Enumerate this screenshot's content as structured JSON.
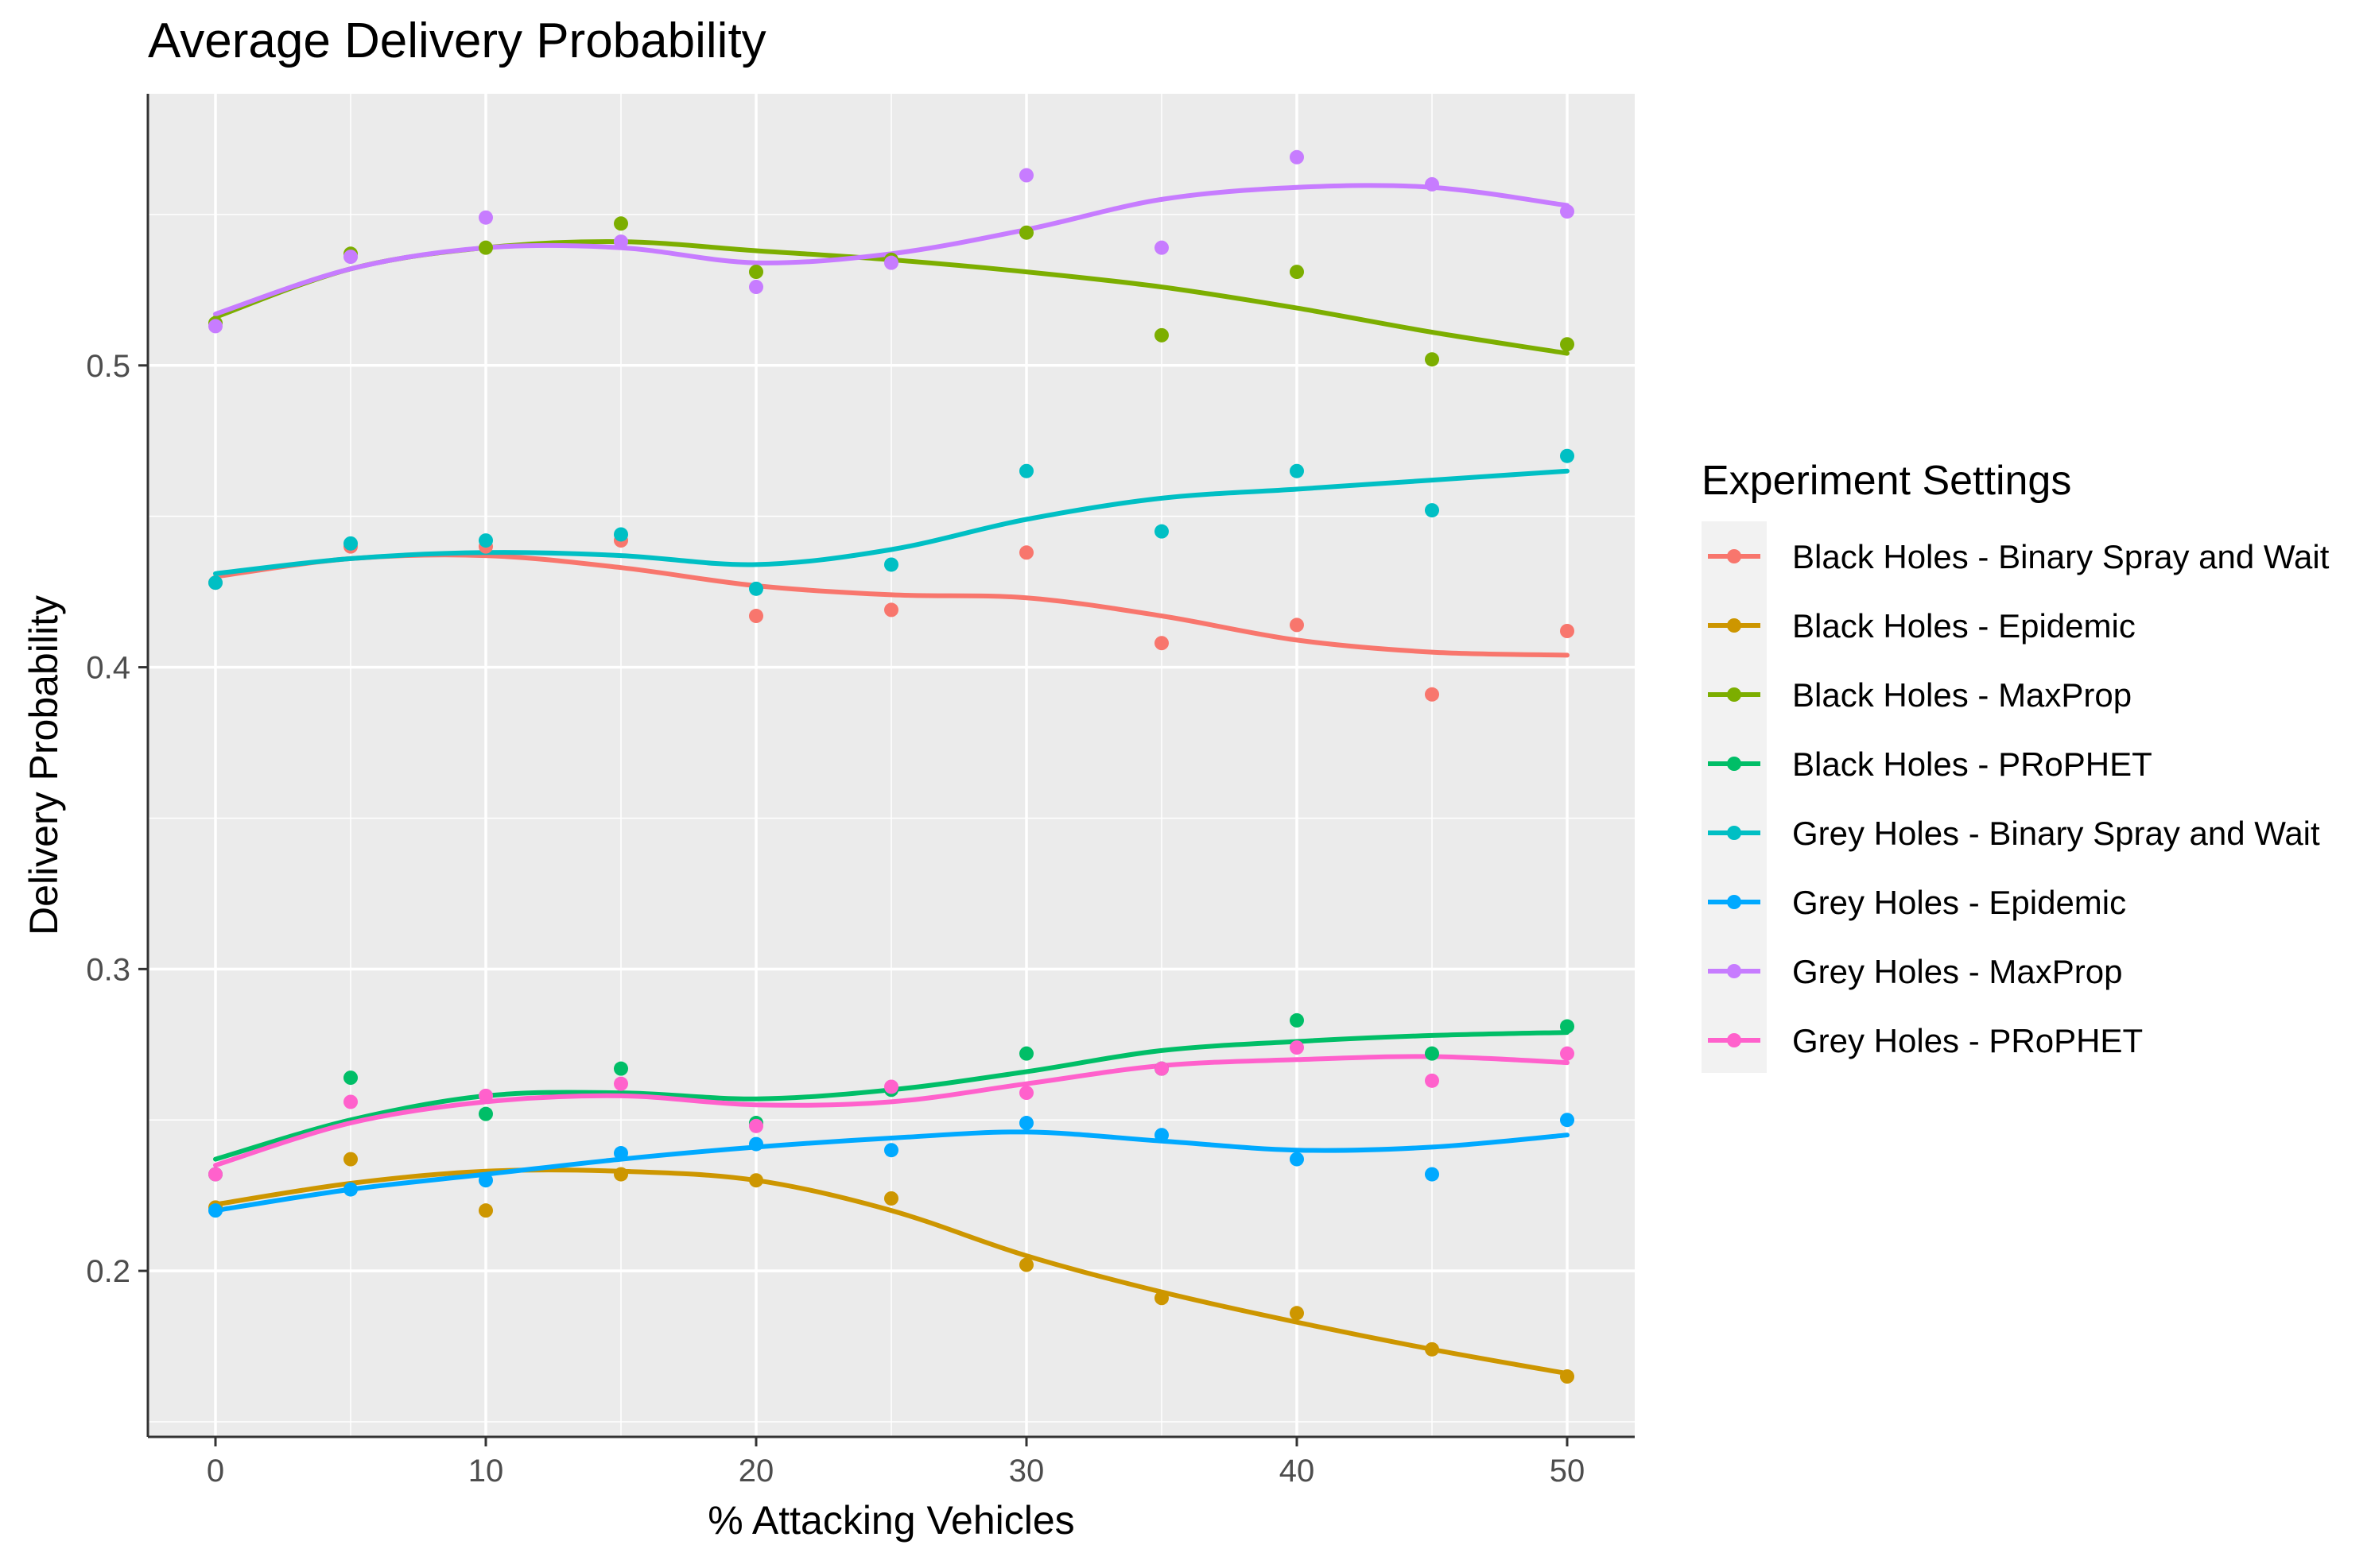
{
  "chart_data": {
    "type": "scatter",
    "title": "Average Delivery Probability",
    "xlabel": "% Attacking Vehicles",
    "ylabel": "Delivery Probability",
    "xlim": [
      -2.5,
      52.5
    ],
    "ylim": [
      0.145,
      0.59
    ],
    "xticks": [
      0,
      10,
      20,
      30,
      40,
      50
    ],
    "xtick_labels": [
      "0",
      "10",
      "20",
      "30",
      "40",
      "50"
    ],
    "yticks": [
      0.2,
      0.3,
      0.4,
      0.5
    ],
    "ytick_labels": [
      "0.2",
      "0.3",
      "0.4",
      "0.5"
    ],
    "grid": true,
    "legend_title": "Experiment Settings",
    "legend_position": "right",
    "x": [
      0,
      5,
      10,
      15,
      20,
      25,
      30,
      35,
      40,
      45,
      50
    ],
    "series": [
      {
        "name": "Black Holes - Binary Spray and Wait",
        "color": "#F8766D",
        "points": [
          0.428,
          0.44,
          0.44,
          0.442,
          0.417,
          0.419,
          0.438,
          0.408,
          0.414,
          0.391,
          0.412
        ],
        "smooth": [
          0.43,
          0.436,
          0.437,
          0.433,
          0.427,
          0.424,
          0.423,
          0.417,
          0.409,
          0.405,
          0.404
        ]
      },
      {
        "name": "Black Holes - Epidemic",
        "color": "#CD9600",
        "points": [
          0.221,
          0.237,
          0.22,
          0.232,
          0.23,
          0.224,
          0.202,
          0.191,
          0.186,
          0.174,
          0.165
        ],
        "smooth": [
          0.222,
          0.229,
          0.233,
          0.233,
          0.23,
          0.22,
          0.205,
          0.193,
          0.183,
          0.174,
          0.166
        ]
      },
      {
        "name": "Black Holes - MaxProp",
        "color": "#7CAE00",
        "points": [
          0.514,
          0.537,
          0.539,
          0.547,
          0.531,
          0.535,
          0.544,
          0.51,
          0.531,
          0.502,
          0.507
        ],
        "smooth": [
          0.516,
          0.532,
          0.539,
          0.541,
          0.538,
          0.535,
          0.531,
          0.526,
          0.519,
          0.511,
          0.504
        ]
      },
      {
        "name": "Black Holes - PRoPHET",
        "color": "#00BE67",
        "points": [
          0.232,
          0.264,
          0.252,
          0.267,
          0.249,
          0.26,
          0.272,
          0.267,
          0.283,
          0.272,
          0.281
        ],
        "smooth": [
          0.237,
          0.25,
          0.258,
          0.259,
          0.257,
          0.26,
          0.266,
          0.273,
          0.276,
          0.278,
          0.279
        ]
      },
      {
        "name": "Grey Holes - Binary Spray and Wait",
        "color": "#00BFC4",
        "points": [
          0.428,
          0.441,
          0.442,
          0.444,
          0.426,
          0.434,
          0.465,
          0.445,
          0.465,
          0.452,
          0.47
        ],
        "smooth": [
          0.431,
          0.436,
          0.438,
          0.437,
          0.434,
          0.439,
          0.449,
          0.456,
          0.459,
          0.462,
          0.465
        ]
      },
      {
        "name": "Grey Holes - Epidemic",
        "color": "#00A9FF",
        "points": [
          0.22,
          0.227,
          0.23,
          0.239,
          0.242,
          0.24,
          0.249,
          0.245,
          0.237,
          0.232,
          0.25
        ],
        "smooth": [
          0.22,
          0.227,
          0.232,
          0.237,
          0.241,
          0.244,
          0.246,
          0.243,
          0.24,
          0.241,
          0.245
        ]
      },
      {
        "name": "Grey Holes - MaxProp",
        "color": "#C77CFF",
        "points": [
          0.513,
          0.536,
          0.549,
          0.541,
          0.526,
          0.534,
          0.563,
          0.539,
          0.569,
          0.56,
          0.551
        ],
        "smooth": [
          0.517,
          0.532,
          0.539,
          0.539,
          0.534,
          0.537,
          0.545,
          0.555,
          0.559,
          0.559,
          0.553
        ]
      },
      {
        "name": "Grey Holes - PRoPHET",
        "color": "#FF61CC",
        "points": [
          0.232,
          0.256,
          0.258,
          0.262,
          0.248,
          0.261,
          0.259,
          0.267,
          0.274,
          0.263,
          0.272
        ],
        "smooth": [
          0.235,
          0.249,
          0.256,
          0.258,
          0.255,
          0.256,
          0.262,
          0.268,
          0.27,
          0.271,
          0.269
        ]
      }
    ]
  }
}
